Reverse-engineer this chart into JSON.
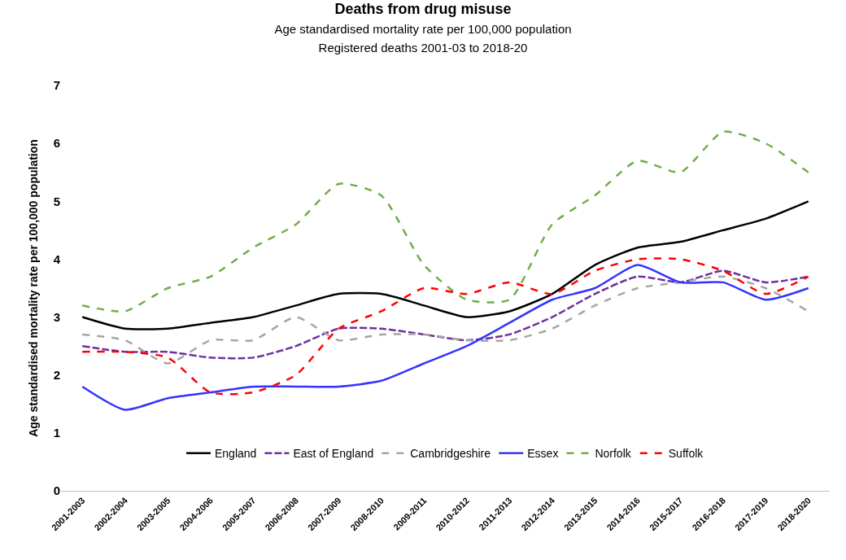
{
  "chart_data": {
    "type": "line",
    "title": "Deaths from drug misuse",
    "subtitle": "Age standardised mortality rate per 100,000 population\nRegistered deaths 2001-03 to 2018-20",
    "ylabel": "Age standardised mortality rate per 100,000 population",
    "categories": [
      "2001-2003",
      "2002-2004",
      "2003-2005",
      "2004-2006",
      "2005-2007",
      "2006-2008",
      "2007-2009",
      "2008-2010",
      "2009-2011",
      "2010-2012",
      "2011-2013",
      "2012-2014",
      "2013-2015",
      "2014-2016",
      "2015-2017",
      "2016-2018",
      "2017-2019",
      "2018-2020"
    ],
    "ylim": [
      0,
      7
    ],
    "yticks": [
      0,
      1,
      2,
      3,
      4,
      5,
      6,
      7
    ],
    "legend": "bottom",
    "marker": "none",
    "series": [
      {
        "name": "England",
        "color": "#000000",
        "line_style": "solid",
        "values": [
          3.0,
          2.8,
          2.8,
          2.9,
          3.0,
          3.2,
          3.4,
          3.4,
          3.2,
          3.0,
          3.1,
          3.4,
          3.9,
          4.2,
          4.3,
          4.5,
          4.7,
          5.0
        ]
      },
      {
        "name": "East of England",
        "color": "#7030a0",
        "line_style": "longdash",
        "values": [
          2.5,
          2.4,
          2.4,
          2.3,
          2.3,
          2.5,
          2.8,
          2.8,
          2.7,
          2.6,
          2.7,
          3.0,
          3.4,
          3.7,
          3.6,
          3.8,
          3.6,
          3.7
        ]
      },
      {
        "name": "Cambridgeshire",
        "color": "#a6a6a6",
        "line_style": "dashed",
        "values": [
          2.7,
          2.6,
          2.2,
          2.6,
          2.6,
          3.0,
          2.6,
          2.7,
          2.7,
          2.6,
          2.6,
          2.8,
          3.2,
          3.5,
          3.6,
          3.7,
          3.5,
          3.1
        ]
      },
      {
        "name": "Essex",
        "color": "#3333ff",
        "line_style": "solid",
        "values": [
          1.8,
          1.4,
          1.6,
          1.7,
          1.8,
          1.8,
          1.8,
          1.9,
          2.2,
          2.5,
          2.9,
          3.3,
          3.5,
          3.9,
          3.6,
          3.6,
          3.3,
          3.5
        ]
      },
      {
        "name": "Norfolk",
        "color": "#70ad47",
        "line_style": "dashed",
        "values": [
          3.2,
          3.1,
          3.5,
          3.7,
          4.2,
          4.6,
          5.3,
          5.1,
          3.9,
          3.3,
          3.3,
          4.6,
          5.1,
          5.7,
          5.5,
          6.2,
          6.0,
          5.5
        ]
      },
      {
        "name": "Suffolk",
        "color": "#ff0000",
        "line_style": "dashed",
        "values": [
          2.4,
          2.4,
          2.3,
          1.7,
          1.7,
          2.0,
          2.8,
          3.1,
          3.5,
          3.4,
          3.6,
          3.4,
          3.8,
          4.0,
          4.0,
          3.8,
          3.4,
          3.7
        ]
      }
    ]
  }
}
